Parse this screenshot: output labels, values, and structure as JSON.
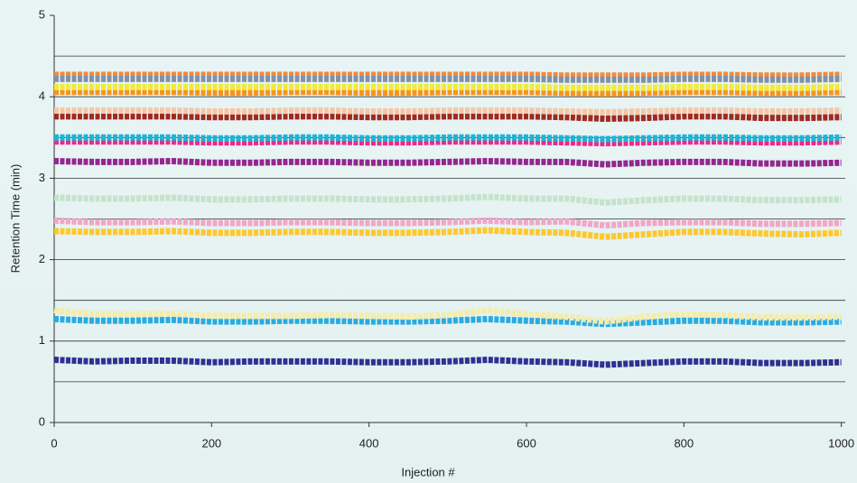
{
  "chart_data": {
    "type": "line",
    "x_label": "Injection #",
    "y_label": "Retention Time (min)",
    "x": [
      0,
      50,
      100,
      150,
      200,
      250,
      300,
      350,
      400,
      450,
      500,
      550,
      600,
      650,
      700,
      750,
      800,
      850,
      900,
      950,
      1000
    ],
    "xlim": [
      0,
      1005
    ],
    "xticks": [
      0,
      200,
      400,
      600,
      800,
      1000
    ],
    "ylim": [
      0,
      5
    ],
    "yticks": [
      0,
      1,
      2,
      3,
      4,
      5
    ],
    "ygrid": [
      0.5,
      1,
      1.5,
      2,
      2.5,
      3,
      3.5,
      4,
      4.5
    ],
    "series": [
      {
        "color": "#2e3192",
        "values": [
          0.77,
          0.75,
          0.76,
          0.76,
          0.74,
          0.75,
          0.75,
          0.75,
          0.74,
          0.74,
          0.75,
          0.77,
          0.75,
          0.74,
          0.71,
          0.73,
          0.75,
          0.75,
          0.73,
          0.73,
          0.74
        ]
      },
      {
        "color": "#29abe2",
        "values": [
          1.27,
          1.25,
          1.25,
          1.26,
          1.24,
          1.24,
          1.25,
          1.25,
          1.24,
          1.24,
          1.25,
          1.27,
          1.25,
          1.24,
          1.21,
          1.23,
          1.25,
          1.25,
          1.23,
          1.23,
          1.24
        ]
      },
      {
        "color": "#f5eca8",
        "values": [
          1.38,
          1.33,
          1.33,
          1.34,
          1.31,
          1.31,
          1.31,
          1.32,
          1.31,
          1.3,
          1.32,
          1.38,
          1.33,
          1.3,
          1.24,
          1.3,
          1.33,
          1.32,
          1.29,
          1.29,
          1.3
        ]
      },
      {
        "color": "#fdc82f",
        "values": [
          2.35,
          2.34,
          2.34,
          2.35,
          2.33,
          2.33,
          2.34,
          2.34,
          2.33,
          2.33,
          2.34,
          2.36,
          2.34,
          2.33,
          2.28,
          2.31,
          2.34,
          2.34,
          2.32,
          2.31,
          2.33
        ]
      },
      {
        "color": "#f0a6c8",
        "values": [
          2.48,
          2.46,
          2.46,
          2.47,
          2.45,
          2.45,
          2.46,
          2.46,
          2.45,
          2.45,
          2.46,
          2.48,
          2.46,
          2.47,
          2.42,
          2.45,
          2.46,
          2.46,
          2.44,
          2.44,
          2.45
        ]
      },
      {
        "color": "#c5e3cb",
        "values": [
          2.76,
          2.75,
          2.75,
          2.76,
          2.74,
          2.74,
          2.75,
          2.75,
          2.74,
          2.74,
          2.75,
          2.77,
          2.75,
          2.75,
          2.7,
          2.73,
          2.75,
          2.75,
          2.73,
          2.73,
          2.74
        ]
      },
      {
        "color": "#92278f",
        "values": [
          3.21,
          3.2,
          3.2,
          3.21,
          3.19,
          3.19,
          3.2,
          3.2,
          3.19,
          3.19,
          3.2,
          3.21,
          3.2,
          3.2,
          3.17,
          3.19,
          3.2,
          3.2,
          3.18,
          3.18,
          3.19
        ]
      },
      {
        "color": "#ec2a8c",
        "values": [
          3.45,
          3.45,
          3.45,
          3.45,
          3.44,
          3.44,
          3.45,
          3.45,
          3.44,
          3.44,
          3.45,
          3.45,
          3.45,
          3.44,
          3.43,
          3.44,
          3.45,
          3.45,
          3.44,
          3.44,
          3.45
        ]
      },
      {
        "color": "#1fb4d6",
        "values": [
          3.5,
          3.5,
          3.5,
          3.5,
          3.49,
          3.49,
          3.5,
          3.5,
          3.49,
          3.49,
          3.5,
          3.5,
          3.5,
          3.49,
          3.48,
          3.49,
          3.5,
          3.5,
          3.49,
          3.49,
          3.5
        ]
      },
      {
        "color": "#9e2a22",
        "values": [
          3.76,
          3.76,
          3.76,
          3.76,
          3.75,
          3.75,
          3.76,
          3.76,
          3.75,
          3.75,
          3.76,
          3.76,
          3.76,
          3.75,
          3.73,
          3.74,
          3.76,
          3.76,
          3.74,
          3.74,
          3.75
        ]
      },
      {
        "color": "#f6c6a6",
        "values": [
          3.83,
          3.83,
          3.83,
          3.83,
          3.82,
          3.82,
          3.83,
          3.83,
          3.82,
          3.82,
          3.83,
          3.83,
          3.83,
          3.82,
          3.81,
          3.82,
          3.83,
          3.83,
          3.82,
          3.82,
          3.83
        ]
      },
      {
        "color": "#f7941d",
        "values": [
          4.06,
          4.06,
          4.06,
          4.06,
          4.05,
          4.05,
          4.06,
          4.06,
          4.05,
          4.05,
          4.06,
          4.06,
          4.06,
          4.05,
          4.04,
          4.05,
          4.06,
          4.06,
          4.05,
          4.05,
          4.06
        ]
      },
      {
        "color": "#f2ea3a",
        "values": [
          4.12,
          4.12,
          4.12,
          4.12,
          4.12,
          4.12,
          4.12,
          4.12,
          4.12,
          4.12,
          4.12,
          4.12,
          4.12,
          4.11,
          4.11,
          4.11,
          4.12,
          4.12,
          4.11,
          4.11,
          4.12
        ]
      },
      {
        "color": "#f48a3c",
        "values": [
          4.27,
          4.27,
          4.27,
          4.27,
          4.27,
          4.27,
          4.27,
          4.27,
          4.27,
          4.27,
          4.27,
          4.27,
          4.27,
          4.26,
          4.26,
          4.26,
          4.27,
          4.27,
          4.26,
          4.26,
          4.27
        ]
      },
      {
        "color": "#8091a8",
        "values": [
          4.22,
          4.22,
          4.22,
          4.22,
          4.22,
          4.22,
          4.22,
          4.22,
          4.22,
          4.22,
          4.22,
          4.22,
          4.22,
          4.21,
          4.21,
          4.21,
          4.22,
          4.22,
          4.21,
          4.21,
          4.22
        ]
      }
    ]
  }
}
